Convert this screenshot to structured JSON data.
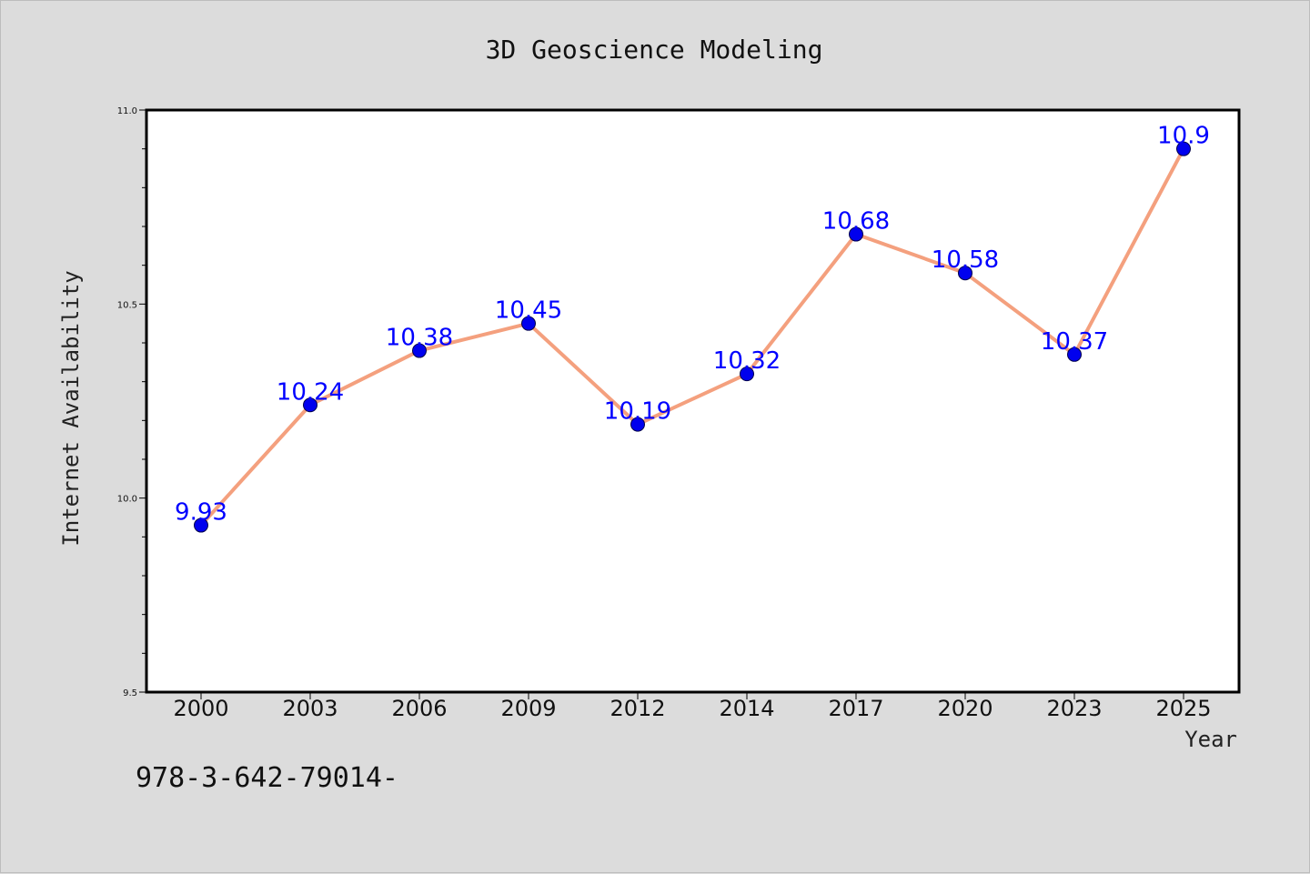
{
  "chart_data": {
    "type": "line",
    "title": "3D Geoscience Modeling",
    "xlabel": "Year",
    "ylabel": "Internet Availability",
    "categories": [
      "2000",
      "2003",
      "2006",
      "2009",
      "2012",
      "2014",
      "2017",
      "2020",
      "2023",
      "2025"
    ],
    "series": [
      {
        "values": [
          9.93,
          10.24,
          10.38,
          10.45,
          10.19,
          10.32,
          10.68,
          10.58,
          10.37,
          10.9
        ],
        "labels": [
          "9.93",
          "10.24",
          "10.38",
          "10.45",
          "10.19",
          "10.32",
          "10.68",
          "10.58",
          "10.37",
          "10.9"
        ],
        "line_color": "#f4a07e",
        "marker_color": "#0000ee",
        "label_color": "#0000ff"
      }
    ],
    "ylim": [
      9.5,
      11.0
    ],
    "yticks": [
      9.5,
      10.0,
      10.5,
      11.0
    ],
    "ytick_labels": [
      "9.5",
      "10.0",
      "10.5",
      "11.0"
    ],
    "grid": false,
    "legend": "none"
  },
  "footnote": "978-3-642-79014-",
  "colors": {
    "background": "#dcdcdc",
    "plot_background": "#ffffff",
    "axis": "#000000"
  }
}
